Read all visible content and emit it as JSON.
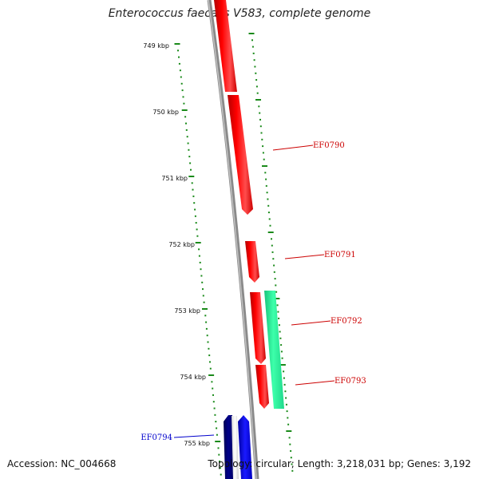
{
  "title": "Enterococcus faecalis V583, complete genome",
  "accession": "Accession: NC_004668",
  "summary": "Topology: circular; Length: 3,218,031 bp; Genes: 3,192",
  "colors": {
    "forward_gene": "#ff0000",
    "reverse_gene": "#0000e6",
    "reverse_gene_dark": "#00008b",
    "feature_green": "#22ee99",
    "backbone": "#8a8a8a",
    "tick": "#1a8a1a",
    "forward_label": "#cc0000",
    "reverse_label": "#0000cc"
  },
  "scale_ticks": [
    {
      "label": "749 kbp"
    },
    {
      "label": "750 kbp"
    },
    {
      "label": "751 kbp"
    },
    {
      "label": "752 kbp"
    },
    {
      "label": "753 kbp"
    },
    {
      "label": "754 kbp"
    },
    {
      "label": "755 kbp"
    }
  ],
  "genes": [
    {
      "name": "EF0790",
      "strand": "forward"
    },
    {
      "name": "EF0791",
      "strand": "forward"
    },
    {
      "name": "EF0792",
      "strand": "forward"
    },
    {
      "name": "EF0793",
      "strand": "forward"
    },
    {
      "name": "EF0794",
      "strand": "reverse"
    }
  ]
}
